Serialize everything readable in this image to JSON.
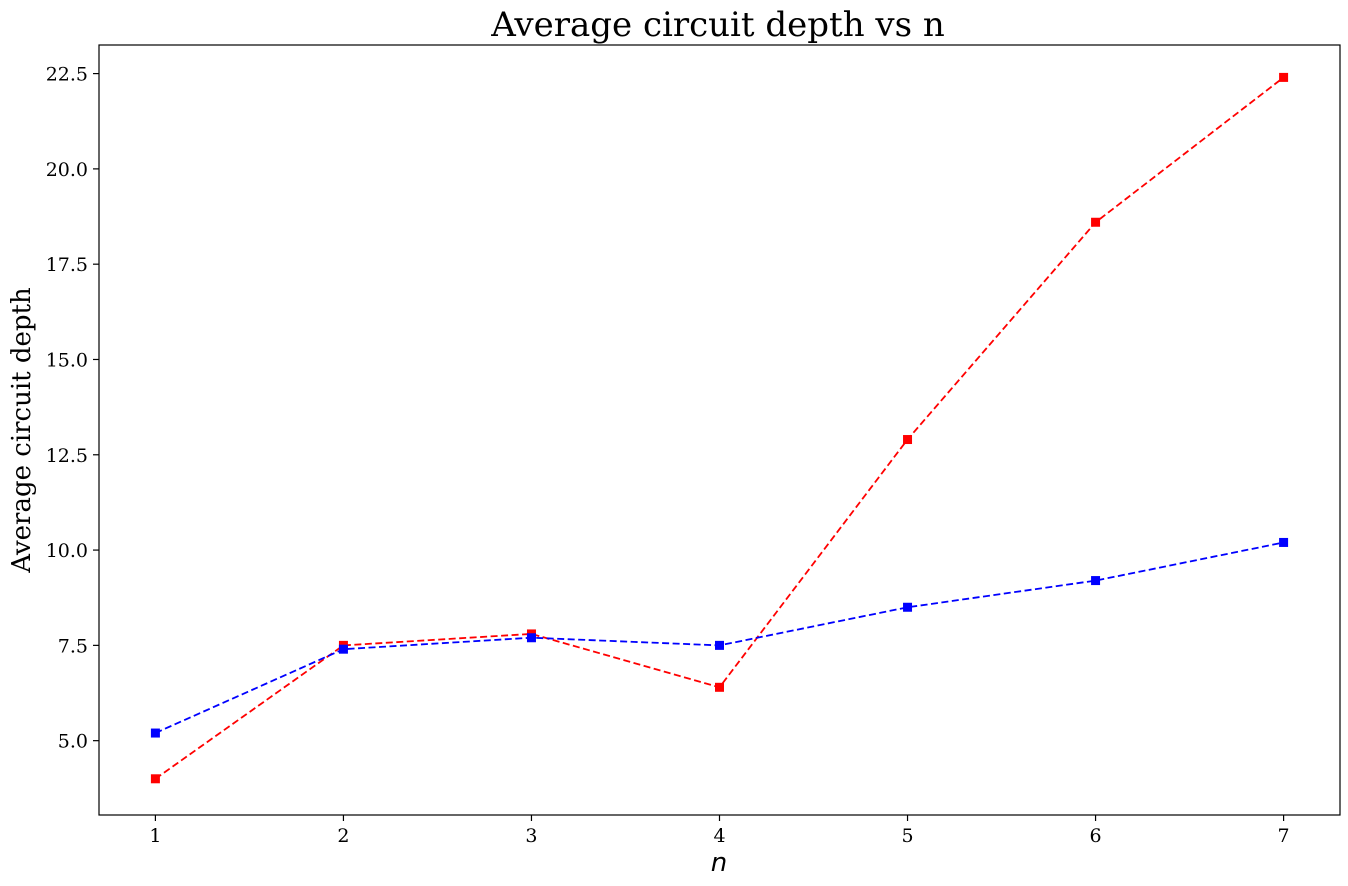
{
  "chart_data": {
    "type": "line",
    "title": "Average circuit depth vs n",
    "xlabel": "n",
    "ylabel": "Average circuit depth",
    "x": [
      1,
      2,
      3,
      4,
      5,
      6,
      7
    ],
    "xlim": [
      0.7,
      7.3
    ],
    "ylim": [
      3.05,
      23.25
    ],
    "xticks": [
      "1",
      "2",
      "3",
      "4",
      "5",
      "6",
      "7"
    ],
    "yticks": [
      5.0,
      7.5,
      10.0,
      12.5,
      15.0,
      17.5,
      20.0,
      22.5
    ],
    "ytick_labels": [
      "5.0",
      "7.5",
      "10.0",
      "12.5",
      "15.0",
      "17.5",
      "20.0",
      "22.5"
    ],
    "grid": false,
    "series": [
      {
        "color": "#ff0000",
        "line_style": "dashed",
        "marker": "square",
        "values": [
          4.0,
          7.5,
          7.8,
          6.4,
          12.9,
          18.6,
          22.4
        ]
      },
      {
        "color": "#0000ff",
        "line_style": "dashed",
        "marker": "square",
        "values": [
          5.2,
          7.4,
          7.7,
          7.5,
          8.5,
          9.2,
          10.2
        ]
      }
    ]
  }
}
